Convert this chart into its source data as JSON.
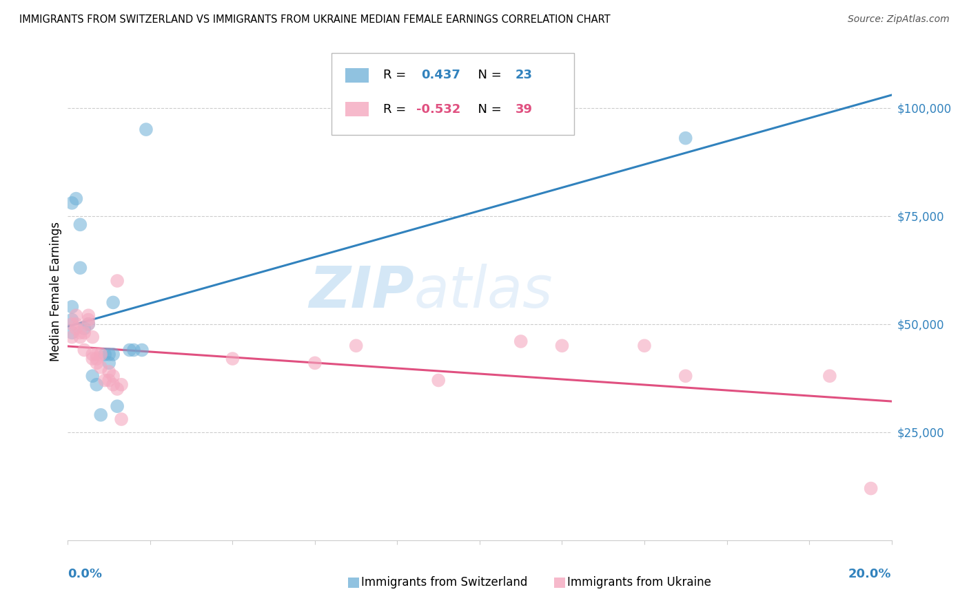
{
  "title": "IMMIGRANTS FROM SWITZERLAND VS IMMIGRANTS FROM UKRAINE MEDIAN FEMALE EARNINGS CORRELATION CHART",
  "source": "Source: ZipAtlas.com",
  "ylabel": "Median Female Earnings",
  "ytick_labels": [
    "$25,000",
    "$50,000",
    "$75,000",
    "$100,000"
  ],
  "ytick_values": [
    25000,
    50000,
    75000,
    100000
  ],
  "ylim": [
    0,
    115000
  ],
  "xlim": [
    0.0,
    0.2
  ],
  "blue_color": "#6baed6",
  "pink_color": "#f4a8bf",
  "blue_line_color": "#3182bd",
  "pink_line_color": "#e05080",
  "axis_label_color": "#3182bd",
  "swiss_x": [
    0.001,
    0.001,
    0.001,
    0.002,
    0.003,
    0.003,
    0.004,
    0.005,
    0.006,
    0.007,
    0.008,
    0.009,
    0.01,
    0.01,
    0.011,
    0.011,
    0.012,
    0.015,
    0.016,
    0.018,
    0.019,
    0.15,
    0.001
  ],
  "swiss_y": [
    54000,
    51000,
    78000,
    79000,
    73000,
    63000,
    49000,
    50000,
    38000,
    36000,
    29000,
    43000,
    43000,
    41000,
    43000,
    55000,
    31000,
    44000,
    44000,
    44000,
    95000,
    93000,
    48000
  ],
  "ukraine_x": [
    0.001,
    0.001,
    0.002,
    0.002,
    0.002,
    0.003,
    0.003,
    0.004,
    0.004,
    0.005,
    0.005,
    0.005,
    0.006,
    0.006,
    0.006,
    0.007,
    0.007,
    0.007,
    0.008,
    0.008,
    0.009,
    0.01,
    0.01,
    0.011,
    0.011,
    0.012,
    0.012,
    0.013,
    0.013,
    0.04,
    0.06,
    0.07,
    0.09,
    0.11,
    0.12,
    0.14,
    0.15,
    0.185,
    0.195
  ],
  "ukraine_y": [
    47000,
    50000,
    52000,
    49000,
    50000,
    47000,
    48000,
    48000,
    44000,
    50000,
    51000,
    52000,
    42000,
    43000,
    47000,
    42000,
    43000,
    41000,
    40000,
    43000,
    37000,
    37000,
    39000,
    36000,
    38000,
    60000,
    35000,
    36000,
    28000,
    42000,
    41000,
    45000,
    37000,
    46000,
    45000,
    45000,
    38000,
    38000,
    12000
  ],
  "legend_R1": "0.437",
  "legend_N1": "23",
  "legend_R2": "-0.532",
  "legend_N2": "39",
  "legend_label1": "Immigrants from Switzerland",
  "legend_label2": "Immigrants from Ukraine",
  "watermark": "ZIPatlas"
}
